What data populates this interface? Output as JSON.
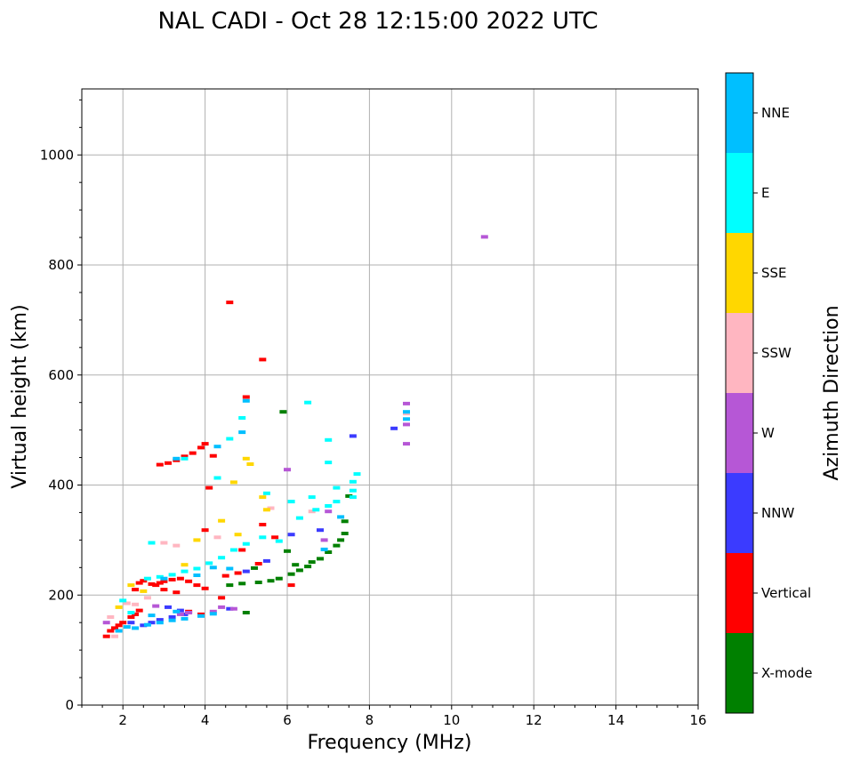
{
  "chart_data": {
    "type": "scatter",
    "title": "NAL CADI - Oct 28 12:15:00 2022 UTC",
    "xlabel": "Frequency (MHz)",
    "ylabel": "Virtual height (km)",
    "xlim": [
      1,
      16
    ],
    "ylim": [
      0,
      1120
    ],
    "xticks": [
      2,
      4,
      6,
      8,
      10,
      12,
      14,
      16
    ],
    "yticks": [
      0,
      200,
      400,
      600,
      800,
      1000
    ],
    "xtick_labels": [
      "2",
      "4",
      "6",
      "8",
      "10",
      "12",
      "14",
      "16"
    ],
    "ytick_labels": [
      "0",
      "200",
      "400",
      "600",
      "800",
      "1000"
    ],
    "grid": true,
    "colorbar": {
      "label": "Azimuth Direction",
      "categories": [
        {
          "name": "X-mode",
          "color": "#008000"
        },
        {
          "name": "Vertical",
          "color": "#ff0000"
        },
        {
          "name": "NNW",
          "color": "#3b3bff"
        },
        {
          "name": "W",
          "color": "#b657d6"
        },
        {
          "name": "SSW",
          "color": "#ffb6c1"
        },
        {
          "name": "SSE",
          "color": "#ffd700"
        },
        {
          "name": "E",
          "color": "#00ffff"
        },
        {
          "name": "NNE",
          "color": "#00bfff"
        }
      ]
    },
    "series": [
      {
        "name": "X-mode",
        "points": [
          [
            4.6,
            218
          ],
          [
            4.9,
            221
          ],
          [
            5.3,
            223
          ],
          [
            5.6,
            226
          ],
          [
            5.8,
            230
          ],
          [
            6.1,
            238
          ],
          [
            6.3,
            245
          ],
          [
            6.5,
            252
          ],
          [
            6.6,
            260
          ],
          [
            6.8,
            266
          ],
          [
            7.0,
            278
          ],
          [
            7.2,
            290
          ],
          [
            7.3,
            300
          ],
          [
            7.4,
            312
          ],
          [
            7.4,
            334
          ],
          [
            7.5,
            380
          ],
          [
            6.0,
            280
          ],
          [
            5.9,
            533
          ],
          [
            5.0,
            168
          ],
          [
            5.2,
            249
          ],
          [
            6.2,
            255
          ]
        ]
      },
      {
        "name": "Vertical",
        "points": [
          [
            1.6,
            125
          ],
          [
            1.7,
            135
          ],
          [
            1.8,
            140
          ],
          [
            1.9,
            145
          ],
          [
            2.0,
            150
          ],
          [
            2.2,
            160
          ],
          [
            2.3,
            165
          ],
          [
            2.4,
            172
          ],
          [
            2.3,
            210
          ],
          [
            2.4,
            222
          ],
          [
            2.5,
            226
          ],
          [
            2.7,
            220
          ],
          [
            2.8,
            218
          ],
          [
            2.9,
            222
          ],
          [
            3.0,
            225
          ],
          [
            3.2,
            228
          ],
          [
            3.4,
            230
          ],
          [
            3.6,
            225
          ],
          [
            3.8,
            218
          ],
          [
            4.0,
            212
          ],
          [
            3.0,
            210
          ],
          [
            3.3,
            205
          ],
          [
            2.9,
            437
          ],
          [
            3.1,
            440
          ],
          [
            3.3,
            445
          ],
          [
            3.5,
            452
          ],
          [
            3.7,
            458
          ],
          [
            3.9,
            468
          ],
          [
            4.0,
            475
          ],
          [
            4.2,
            453
          ],
          [
            4.1,
            395
          ],
          [
            4.5,
            235
          ],
          [
            4.8,
            240
          ],
          [
            4.6,
            732
          ],
          [
            5.0,
            560
          ],
          [
            5.4,
            628
          ],
          [
            4.0,
            318
          ],
          [
            4.9,
            282
          ],
          [
            5.4,
            328
          ],
          [
            5.7,
            305
          ],
          [
            6.1,
            218
          ],
          [
            5.3,
            257
          ],
          [
            3.6,
            170
          ],
          [
            3.9,
            165
          ],
          [
            4.4,
            195
          ]
        ]
      },
      {
        "name": "NNW",
        "points": [
          [
            2.5,
            145
          ],
          [
            2.7,
            150
          ],
          [
            2.9,
            155
          ],
          [
            3.2,
            160
          ],
          [
            3.5,
            165
          ],
          [
            5.0,
            243
          ],
          [
            5.5,
            262
          ],
          [
            7.6,
            489
          ],
          [
            8.6,
            503
          ],
          [
            6.1,
            310
          ],
          [
            4.6,
            175
          ],
          [
            3.1,
            178
          ],
          [
            3.4,
            172
          ],
          [
            2.2,
            150
          ],
          [
            6.8,
            318
          ]
        ]
      },
      {
        "name": "W",
        "points": [
          [
            8.9,
            548
          ],
          [
            8.9,
            510
          ],
          [
            8.9,
            475
          ],
          [
            3.4,
            165
          ],
          [
            3.6,
            168
          ],
          [
            4.2,
            170
          ],
          [
            4.4,
            178
          ],
          [
            4.7,
            175
          ],
          [
            6.0,
            428
          ],
          [
            10.8,
            851
          ],
          [
            6.9,
            300
          ],
          [
            7.0,
            352
          ],
          [
            2.8,
            180
          ],
          [
            1.6,
            150
          ]
        ]
      },
      {
        "name": "SSW",
        "points": [
          [
            3.0,
            295
          ],
          [
            3.3,
            290
          ],
          [
            2.6,
            195
          ],
          [
            2.3,
            183
          ],
          [
            1.8,
            125
          ],
          [
            1.7,
            160
          ],
          [
            2.1,
            185
          ],
          [
            4.3,
            305
          ],
          [
            5.6,
            358
          ],
          [
            8.9,
            530
          ],
          [
            6.6,
            352
          ]
        ]
      },
      {
        "name": "SSE",
        "points": [
          [
            3.8,
            300
          ],
          [
            4.4,
            335
          ],
          [
            4.7,
            405
          ],
          [
            5.0,
            448
          ],
          [
            5.1,
            438
          ],
          [
            5.4,
            378
          ],
          [
            4.8,
            310
          ],
          [
            2.2,
            218
          ],
          [
            2.5,
            207
          ],
          [
            1.9,
            178
          ],
          [
            5.5,
            355
          ],
          [
            3.5,
            255
          ]
        ]
      },
      {
        "name": "E",
        "points": [
          [
            2.6,
            230
          ],
          [
            2.9,
            233
          ],
          [
            3.2,
            237
          ],
          [
            3.5,
            243
          ],
          [
            3.8,
            248
          ],
          [
            4.1,
            258
          ],
          [
            4.4,
            268
          ],
          [
            4.7,
            282
          ],
          [
            5.0,
            293
          ],
          [
            5.4,
            305
          ],
          [
            5.8,
            298
          ],
          [
            6.3,
            340
          ],
          [
            6.7,
            355
          ],
          [
            7.0,
            362
          ],
          [
            7.2,
            370
          ],
          [
            7.6,
            378
          ],
          [
            7.6,
            390
          ],
          [
            7.6,
            406
          ],
          [
            7.7,
            420
          ],
          [
            7.0,
            441
          ],
          [
            7.0,
            482
          ],
          [
            7.2,
            395
          ],
          [
            6.6,
            378
          ],
          [
            5.5,
            385
          ],
          [
            4.9,
            522
          ],
          [
            6.5,
            550
          ],
          [
            6.1,
            370
          ],
          [
            4.3,
            413
          ],
          [
            4.6,
            484
          ],
          [
            2.7,
            295
          ],
          [
            3.5,
            448
          ],
          [
            2.2,
            168
          ],
          [
            2.0,
            190
          ]
        ]
      },
      {
        "name": "NNE",
        "points": [
          [
            2.3,
            140
          ],
          [
            2.6,
            146
          ],
          [
            2.9,
            150
          ],
          [
            3.2,
            154
          ],
          [
            3.5,
            157
          ],
          [
            3.9,
            162
          ],
          [
            4.2,
            166
          ],
          [
            1.9,
            135
          ],
          [
            2.1,
            142
          ],
          [
            2.7,
            163
          ],
          [
            3.3,
            170
          ],
          [
            3.8,
            236
          ],
          [
            4.2,
            250
          ],
          [
            4.6,
            248
          ],
          [
            3.0,
            230
          ],
          [
            3.3,
            448
          ],
          [
            4.3,
            470
          ],
          [
            6.9,
            283
          ],
          [
            7.3,
            342
          ],
          [
            8.9,
            520
          ],
          [
            8.9,
            533
          ],
          [
            5.0,
            553
          ],
          [
            4.9,
            496
          ]
        ]
      }
    ]
  }
}
